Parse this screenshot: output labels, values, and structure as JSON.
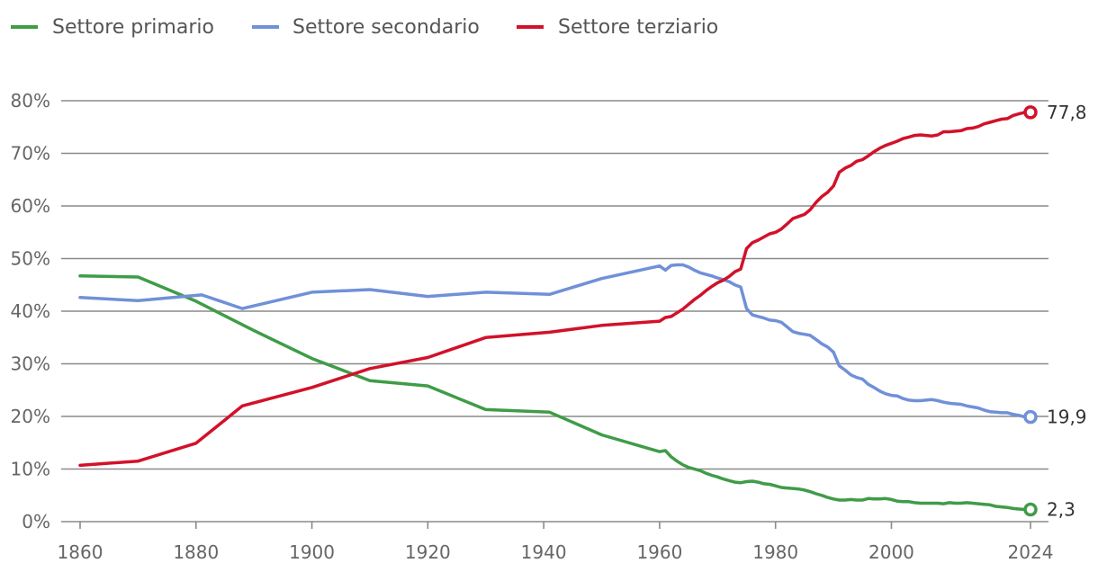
{
  "chart_data": {
    "type": "line",
    "ylim": [
      0,
      80
    ],
    "xlim": [
      1860,
      2024
    ],
    "y_ticks": [
      "0%",
      "10%",
      "20%",
      "30%",
      "40%",
      "50%",
      "60%",
      "70%",
      "80%"
    ],
    "x_ticks": [
      "1860",
      "1880",
      "1900",
      "1920",
      "1940",
      "1960",
      "1980",
      "2000",
      "2024"
    ],
    "grid": true,
    "legend_position": "top-left",
    "series": [
      {
        "name": "Settore primario",
        "color": "#3f9c47",
        "end_label": "2,3",
        "points": [
          [
            1860,
            46.7
          ],
          [
            1870,
            46.5
          ],
          [
            1880,
            41.9
          ],
          [
            1890,
            36.3
          ],
          [
            1900,
            31.0
          ],
          [
            1910,
            26.8
          ],
          [
            1920,
            25.8
          ],
          [
            1930,
            21.3
          ],
          [
            1941,
            20.8
          ],
          [
            1950,
            16.5
          ],
          [
            1960,
            13.3
          ],
          [
            1961,
            13.5
          ],
          [
            1962,
            12.3
          ],
          [
            1963,
            11.5
          ],
          [
            1964,
            10.8
          ],
          [
            1965,
            10.3
          ],
          [
            1966,
            10.0
          ],
          [
            1967,
            9.7
          ],
          [
            1968,
            9.2
          ],
          [
            1969,
            8.8
          ],
          [
            1970,
            8.5
          ],
          [
            1971,
            8.1
          ],
          [
            1972,
            7.8
          ],
          [
            1973,
            7.5
          ],
          [
            1974,
            7.4
          ],
          [
            1975,
            7.6
          ],
          [
            1976,
            7.7
          ],
          [
            1977,
            7.5
          ],
          [
            1978,
            7.2
          ],
          [
            1979,
            7.1
          ],
          [
            1980,
            6.8
          ],
          [
            1981,
            6.5
          ],
          [
            1982,
            6.4
          ],
          [
            1983,
            6.3
          ],
          [
            1984,
            6.2
          ],
          [
            1985,
            6.0
          ],
          [
            1986,
            5.7
          ],
          [
            1987,
            5.3
          ],
          [
            1988,
            5.0
          ],
          [
            1989,
            4.6
          ],
          [
            1990,
            4.3
          ],
          [
            1991,
            4.1
          ],
          [
            1992,
            4.1
          ],
          [
            1993,
            4.2
          ],
          [
            1994,
            4.1
          ],
          [
            1995,
            4.1
          ],
          [
            1996,
            4.4
          ],
          [
            1997,
            4.3
          ],
          [
            1998,
            4.3
          ],
          [
            1999,
            4.4
          ],
          [
            2000,
            4.2
          ],
          [
            2001,
            3.9
          ],
          [
            2002,
            3.8
          ],
          [
            2003,
            3.8
          ],
          [
            2004,
            3.6
          ],
          [
            2005,
            3.5
          ],
          [
            2006,
            3.5
          ],
          [
            2007,
            3.5
          ],
          [
            2008,
            3.5
          ],
          [
            2009,
            3.4
          ],
          [
            2010,
            3.6
          ],
          [
            2011,
            3.5
          ],
          [
            2012,
            3.5
          ],
          [
            2013,
            3.6
          ],
          [
            2014,
            3.5
          ],
          [
            2015,
            3.4
          ],
          [
            2016,
            3.3
          ],
          [
            2017,
            3.2
          ],
          [
            2018,
            2.9
          ],
          [
            2019,
            2.8
          ],
          [
            2020,
            2.7
          ],
          [
            2021,
            2.5
          ],
          [
            2022,
            2.4
          ],
          [
            2023,
            2.3
          ]
        ]
      },
      {
        "name": "Settore secondario",
        "color": "#7090d8",
        "end_label": "19,9",
        "points": [
          [
            1860,
            42.6
          ],
          [
            1870,
            42.0
          ],
          [
            1881,
            43.1
          ],
          [
            1888,
            40.5
          ],
          [
            1900,
            43.6
          ],
          [
            1910,
            44.1
          ],
          [
            1920,
            42.8
          ],
          [
            1930,
            43.6
          ],
          [
            1941,
            43.2
          ],
          [
            1950,
            46.2
          ],
          [
            1960,
            48.6
          ],
          [
            1961,
            47.8
          ],
          [
            1962,
            48.7
          ],
          [
            1963,
            48.8
          ],
          [
            1964,
            48.8
          ],
          [
            1965,
            48.4
          ],
          [
            1966,
            47.8
          ],
          [
            1967,
            47.3
          ],
          [
            1968,
            47.0
          ],
          [
            1969,
            46.7
          ],
          [
            1970,
            46.3
          ],
          [
            1971,
            46.0
          ],
          [
            1972,
            45.6
          ],
          [
            1973,
            45.0
          ],
          [
            1974,
            44.6
          ],
          [
            1975,
            40.5
          ],
          [
            1976,
            39.3
          ],
          [
            1977,
            39.0
          ],
          [
            1978,
            38.7
          ],
          [
            1979,
            38.3
          ],
          [
            1980,
            38.2
          ],
          [
            1981,
            37.9
          ],
          [
            1982,
            37.0
          ],
          [
            1983,
            36.1
          ],
          [
            1984,
            35.8
          ],
          [
            1985,
            35.6
          ],
          [
            1986,
            35.4
          ],
          [
            1987,
            34.6
          ],
          [
            1988,
            33.8
          ],
          [
            1989,
            33.2
          ],
          [
            1990,
            32.2
          ],
          [
            1991,
            29.6
          ],
          [
            1992,
            28.8
          ],
          [
            1993,
            27.9
          ],
          [
            1994,
            27.4
          ],
          [
            1995,
            27.1
          ],
          [
            1996,
            26.1
          ],
          [
            1997,
            25.5
          ],
          [
            1998,
            24.8
          ],
          [
            1999,
            24.3
          ],
          [
            2000,
            24.0
          ],
          [
            2001,
            23.9
          ],
          [
            2002,
            23.4
          ],
          [
            2003,
            23.1
          ],
          [
            2004,
            23.0
          ],
          [
            2005,
            23.0
          ],
          [
            2006,
            23.1
          ],
          [
            2007,
            23.2
          ],
          [
            2008,
            23.0
          ],
          [
            2009,
            22.7
          ],
          [
            2010,
            22.5
          ],
          [
            2011,
            22.4
          ],
          [
            2012,
            22.3
          ],
          [
            2013,
            22.0
          ],
          [
            2014,
            21.8
          ],
          [
            2015,
            21.6
          ],
          [
            2016,
            21.2
          ],
          [
            2017,
            20.9
          ],
          [
            2018,
            20.8
          ],
          [
            2019,
            20.7
          ],
          [
            2020,
            20.7
          ],
          [
            2021,
            20.4
          ],
          [
            2022,
            20.2
          ],
          [
            2023,
            19.9
          ]
        ]
      },
      {
        "name": "Settore terziario",
        "color": "#d2112a",
        "end_label": "77,8",
        "points": [
          [
            1860,
            10.7
          ],
          [
            1870,
            11.5
          ],
          [
            1880,
            14.9
          ],
          [
            1888,
            22.0
          ],
          [
            1900,
            25.5
          ],
          [
            1910,
            29.1
          ],
          [
            1920,
            31.2
          ],
          [
            1930,
            35.0
          ],
          [
            1941,
            36.0
          ],
          [
            1950,
            37.3
          ],
          [
            1960,
            38.1
          ],
          [
            1961,
            38.8
          ],
          [
            1962,
            39.0
          ],
          [
            1963,
            39.7
          ],
          [
            1964,
            40.4
          ],
          [
            1965,
            41.3
          ],
          [
            1966,
            42.2
          ],
          [
            1967,
            43.0
          ],
          [
            1968,
            43.9
          ],
          [
            1969,
            44.7
          ],
          [
            1970,
            45.4
          ],
          [
            1971,
            45.9
          ],
          [
            1972,
            46.6
          ],
          [
            1973,
            47.5
          ],
          [
            1974,
            48.0
          ],
          [
            1975,
            51.9
          ],
          [
            1976,
            53.0
          ],
          [
            1977,
            53.5
          ],
          [
            1978,
            54.1
          ],
          [
            1979,
            54.7
          ],
          [
            1980,
            55.0
          ],
          [
            1981,
            55.6
          ],
          [
            1982,
            56.6
          ],
          [
            1983,
            57.6
          ],
          [
            1984,
            58.0
          ],
          [
            1985,
            58.4
          ],
          [
            1986,
            59.3
          ],
          [
            1987,
            60.7
          ],
          [
            1988,
            61.8
          ],
          [
            1989,
            62.6
          ],
          [
            1990,
            63.8
          ],
          [
            1991,
            66.4
          ],
          [
            1992,
            67.2
          ],
          [
            1993,
            67.7
          ],
          [
            1994,
            68.5
          ],
          [
            1995,
            68.8
          ],
          [
            1996,
            69.5
          ],
          [
            1997,
            70.3
          ],
          [
            1998,
            71.0
          ],
          [
            1999,
            71.5
          ],
          [
            2000,
            71.9
          ],
          [
            2001,
            72.3
          ],
          [
            2002,
            72.8
          ],
          [
            2003,
            73.1
          ],
          [
            2004,
            73.4
          ],
          [
            2005,
            73.5
          ],
          [
            2006,
            73.4
          ],
          [
            2007,
            73.3
          ],
          [
            2008,
            73.5
          ],
          [
            2009,
            74.1
          ],
          [
            2010,
            74.1
          ],
          [
            2011,
            74.2
          ],
          [
            2012,
            74.3
          ],
          [
            2013,
            74.7
          ],
          [
            2014,
            74.8
          ],
          [
            2015,
            75.1
          ],
          [
            2016,
            75.6
          ],
          [
            2017,
            75.9
          ],
          [
            2018,
            76.2
          ],
          [
            2019,
            76.5
          ],
          [
            2020,
            76.6
          ],
          [
            2021,
            77.2
          ],
          [
            2022,
            77.5
          ],
          [
            2023,
            77.8
          ]
        ]
      }
    ]
  }
}
